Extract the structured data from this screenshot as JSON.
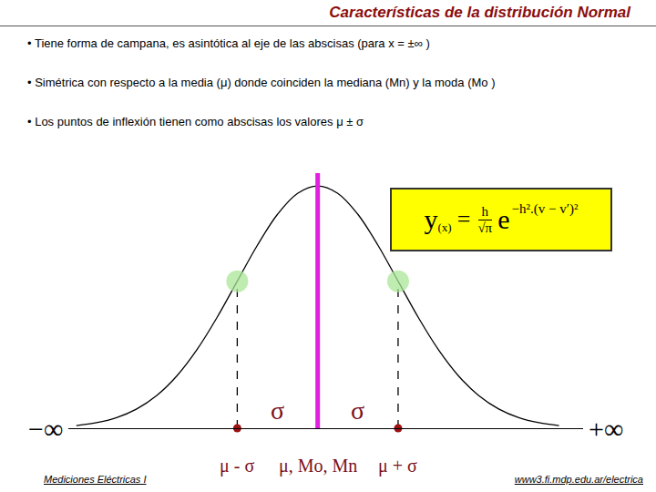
{
  "slide": {
    "title": "Características de la distribución Normal",
    "bullets": [
      "• Tiene forma de campana, es asintótica al eje de las abscisas (para  x = ±∞ )",
      "• Simétrica con respecto a la media (μ) donde coinciden la mediana (Mn) y la moda (Mo )",
      "• Los puntos de inflexión tienen como abscisas los  valores μ ± σ"
    ],
    "formula": {
      "lhs": "y",
      "lhs_sub": "(x)",
      "equals": "=",
      "numerator": "h",
      "denominator": "√π",
      "base": "e",
      "exponent": "−h².(v − v′)²"
    },
    "footer_left": "Mediciones Eléctricas I",
    "footer_right": "www3.fi.mdp.edu.ar/electrica"
  },
  "chart_data": {
    "type": "line",
    "color": "#000000",
    "x": [
      -3,
      -2.75,
      -2.5,
      -2.25,
      -2,
      -1.75,
      -1.5,
      -1.25,
      -1,
      -0.75,
      -0.5,
      -0.25,
      0,
      0.25,
      0.5,
      0.75,
      1,
      1.25,
      1.5,
      1.75,
      2,
      2.25,
      2.5,
      2.75,
      3
    ],
    "values": [
      0.0044,
      0.0091,
      0.0175,
      0.0317,
      0.054,
      0.0863,
      0.1295,
      0.1826,
      0.242,
      0.3011,
      0.3521,
      0.3867,
      0.3989,
      0.3867,
      0.3521,
      0.3011,
      0.242,
      0.1826,
      0.1295,
      0.0863,
      0.054,
      0.0317,
      0.0175,
      0.0091,
      0.0044
    ],
    "xlim": [
      -3.1,
      3.3
    ],
    "ylim": [
      0,
      0.42
    ],
    "tick_labels": false,
    "grid": false,
    "mean": 0,
    "inflection_points": {
      "x": [
        -1,
        1
      ],
      "y": [
        0.242,
        0.242
      ]
    },
    "sigma_labels": [
      "σ",
      "σ"
    ],
    "point_labels": [
      "μ - σ",
      "μ, Mo, Mn",
      "μ + σ"
    ],
    "axis_end_labels": [
      "−∞",
      "+∞"
    ]
  }
}
